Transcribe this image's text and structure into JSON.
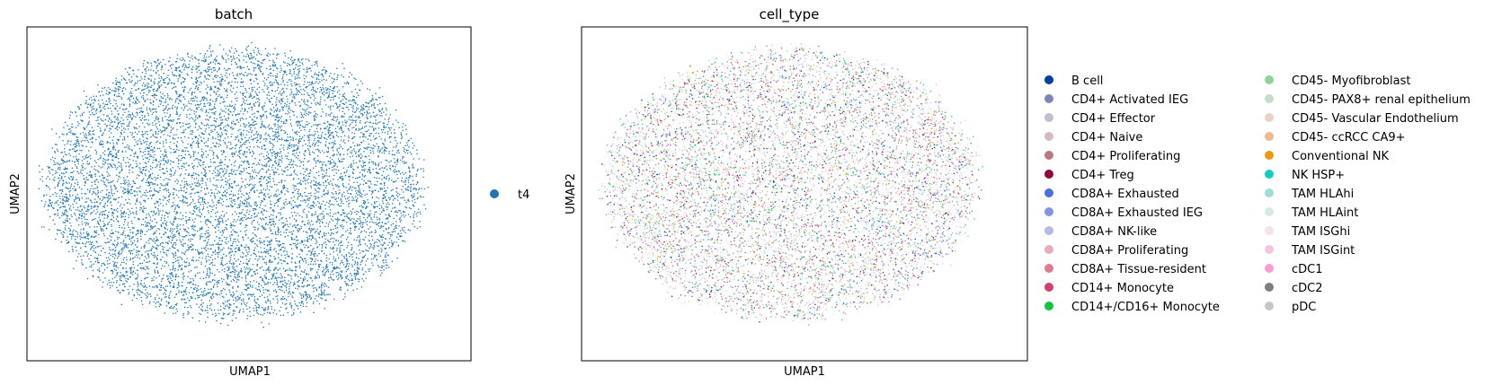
{
  "chart_data": [
    {
      "type": "scatter",
      "title": "batch",
      "xlabel": "UMAP1",
      "ylabel": "UMAP2",
      "grid": false,
      "ticks": false,
      "legend": {
        "placement": "right",
        "entries": [
          {
            "label": "t4",
            "color": "#1f77b4"
          }
        ]
      }
    },
    {
      "type": "scatter",
      "title": "cell_type",
      "xlabel": "UMAP1",
      "ylabel": "UMAP2",
      "grid": false,
      "ticks": false,
      "legend": {
        "placement": "right",
        "columns": 2,
        "entries": [
          {
            "label": "B cell",
            "color": "#023fa5"
          },
          {
            "label": "CD4+ Activated IEG",
            "color": "#7d87b9"
          },
          {
            "label": "CD4+ Effector",
            "color": "#bec1d4"
          },
          {
            "label": "CD4+ Naive",
            "color": "#d6bcc0"
          },
          {
            "label": "CD4+ Proliferating",
            "color": "#bb7784"
          },
          {
            "label": "CD4+ Treg",
            "color": "#8e063b"
          },
          {
            "label": "CD8A+ Exhausted",
            "color": "#4a6fe3"
          },
          {
            "label": "CD8A+ Exhausted IEG",
            "color": "#8595e1"
          },
          {
            "label": "CD8A+ NK-like",
            "color": "#b5bbe3"
          },
          {
            "label": "CD8A+ Proliferating",
            "color": "#e6afb9"
          },
          {
            "label": "CD8A+ Tissue-resident",
            "color": "#e07b91"
          },
          {
            "label": "CD14+ Monocyte",
            "color": "#d33f6a"
          },
          {
            "label": "CD14+/CD16+ Monocyte",
            "color": "#11c638"
          },
          {
            "label": "CD45- Myofibroblast",
            "color": "#8dd593"
          },
          {
            "label": "CD45- PAX8+ renal epithelium",
            "color": "#c6dec7"
          },
          {
            "label": "CD45- Vascular Endothelium",
            "color": "#ead3c6"
          },
          {
            "label": "CD45- ccRCC CA9+",
            "color": "#f0b98d"
          },
          {
            "label": "Conventional NK",
            "color": "#ef9708"
          },
          {
            "label": "NK HSP+",
            "color": "#0fcfc0"
          },
          {
            "label": "TAM HLAhi",
            "color": "#9cded6"
          },
          {
            "label": "TAM HLAint",
            "color": "#d5eae7"
          },
          {
            "label": "TAM ISGhi",
            "color": "#f3e1eb"
          },
          {
            "label": "TAM ISGint",
            "color": "#f6c4e1"
          },
          {
            "label": "cDC1",
            "color": "#f79cd4"
          },
          {
            "label": "cDC2",
            "color": "#7f7f7f"
          },
          {
            "label": "pDC",
            "color": "#c7c7c7"
          }
        ]
      }
    }
  ]
}
